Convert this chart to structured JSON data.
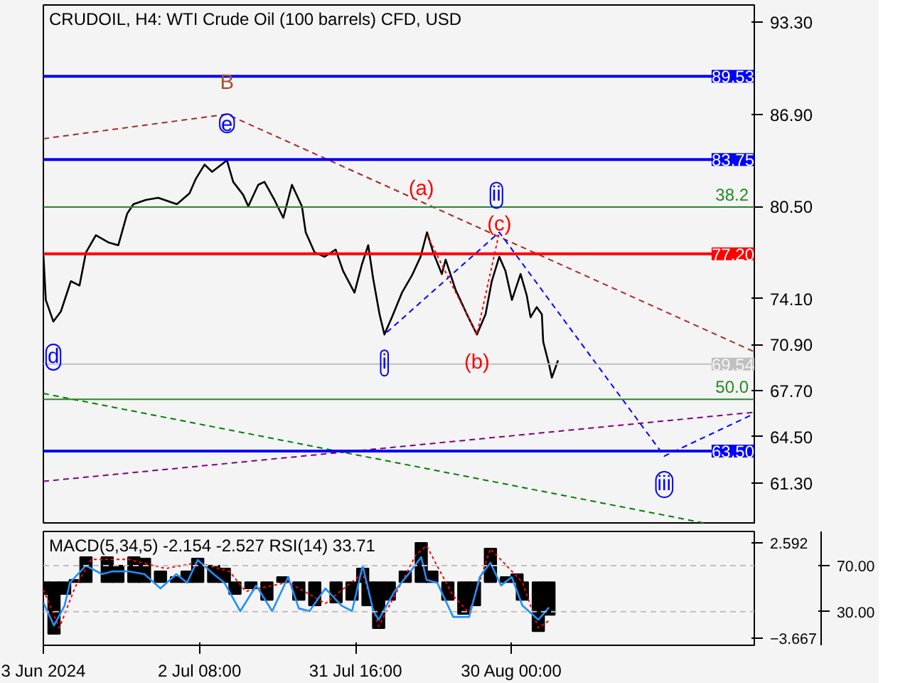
{
  "chart_data": [
    {
      "type": "line",
      "title": "CRUDOIL, H4:  WTI Crude Oil (100 barrels) CFD, USD",
      "xlim": [
        "2024-06-03",
        "2024-10-14T14:00"
      ],
      "ylim": [
        58.41,
        94.49
      ],
      "yticks": [
        {
          "value": 93.3,
          "label": "93.30"
        },
        {
          "value": 86.9,
          "label": "86.90"
        },
        {
          "value": 80.5,
          "label": "80.50"
        },
        {
          "value": 74.1,
          "label": "74.10"
        },
        {
          "value": 70.9,
          "label": "70.90"
        },
        {
          "value": 67.7,
          "label": "67.70"
        },
        {
          "value": 64.5,
          "label": "64.50"
        },
        {
          "value": 61.3,
          "label": "61.30"
        }
      ],
      "tick_labels": "y",
      "series": [
        {
          "color": "#000000",
          "line_style": "solid",
          "x": [
            "2024-06-03T00:00",
            "2024-06-03T11:00",
            "2024-06-04T21:00",
            "2024-06-06T07:00",
            "2024-06-08T04:00",
            "2024-06-09T19:00",
            "2024-06-11T00:00",
            "2024-06-12T21:00",
            "2024-06-15T05:00",
            "2024-06-17T02:00",
            "2024-06-18T18:00",
            "2024-06-19T22:00",
            "2024-06-22T06:00",
            "2024-06-24T14:00",
            "2024-06-28T02:00",
            "2024-06-30T11:00",
            "2024-07-01T15:00",
            "2024-07-03T07:00",
            "2024-07-04T17:00",
            "2024-07-07T12:00",
            "2024-07-08T16:00",
            "2024-07-10T13:00",
            "2024-07-11T12:00",
            "2024-07-13T09:00",
            "2024-07-14T13:00",
            "2024-07-16T10:00",
            "2024-07-18T02:00",
            "2024-07-19T17:00",
            "2024-07-21T14:00",
            "2024-07-22T07:00",
            "2024-07-23T23:00",
            "2024-07-25T20:00",
            "2024-07-27T22:00",
            "2024-07-29T08:00",
            "2024-07-31T11:00",
            "2024-08-01T21:00",
            "2024-08-03T01:00",
            "2024-08-03T23:00",
            "2024-08-05T04:00",
            "2024-08-06T02:00",
            "2024-08-07T12:00",
            "2024-08-09T09:00",
            "2024-08-11T06:00",
            "2024-08-12T21:00",
            "2024-08-14T02:00",
            "2024-08-15T06:00",
            "2024-08-16T21:00",
            "2024-08-17T14:00",
            "2024-08-19T11:00",
            "2024-08-21T14:00",
            "2024-08-23T11:00",
            "2024-08-25T02:00",
            "2024-08-26T06:00",
            "2024-08-27T16:00",
            "2024-08-28T20:00",
            "2024-08-30T01:00",
            "2024-08-31T16:00",
            "2024-09-01T20:00",
            "2024-09-02T13:00",
            "2024-09-03T17:00",
            "2024-09-04T16:00",
            "2024-09-04T22:00",
            "2024-09-06T02:00",
            "2024-09-06T13:00",
            "2024-09-07T17:00"
          ],
          "values": [
            77.2,
            74.0,
            72.5,
            73.2,
            75.3,
            75.0,
            77.3,
            78.5,
            78.0,
            77.8,
            80.0,
            80.65,
            80.95,
            81.1,
            80.65,
            81.4,
            82.4,
            83.4,
            82.9,
            83.7,
            82.2,
            81.3,
            80.5,
            82.0,
            82.2,
            80.95,
            79.7,
            82.0,
            80.5,
            78.7,
            77.3,
            77.0,
            77.5,
            76.0,
            74.5,
            76.5,
            77.8,
            75.5,
            73.0,
            71.6,
            72.8,
            74.5,
            75.7,
            77.0,
            78.7,
            77.3,
            75.8,
            76.8,
            74.7,
            73.0,
            71.6,
            73.0,
            75.3,
            77.0,
            76.0,
            74.0,
            75.8,
            74.3,
            72.8,
            73.5,
            73.0,
            71.1,
            69.4,
            68.6,
            69.8
          ]
        },
        {
          "color": "#a52a2a",
          "line_style": "dashed",
          "x": [
            "2024-06-03",
            "2024-07-07T12:00",
            "2024-10-14T14:00"
          ],
          "values": [
            85.2,
            86.9,
            70.4
          ]
        },
        {
          "color": "#0000ff",
          "line_style": "dashed",
          "x": [
            "2024-08-06T13:00",
            "2024-08-27T16:00",
            "2024-09-27T16:00",
            "2024-10-14T14:00"
          ],
          "values": [
            71.75,
            78.7,
            63.15,
            66.1
          ]
        },
        {
          "color": "#ff0000",
          "line_style": "dotted",
          "x": [
            "2024-08-14T02:00",
            "2024-08-23T11:00",
            "2024-08-27T16:00"
          ],
          "values": [
            78.5,
            71.6,
            78.7
          ]
        },
        {
          "color": "#800080",
          "line_style": "dashed",
          "x": [
            "2024-06-03",
            "2024-10-14T14:00"
          ],
          "values": [
            61.4,
            66.2
          ]
        },
        {
          "color": "#008000",
          "line_style": "dashed",
          "x": [
            "2024-06-03",
            "2024-10-05T05:00"
          ],
          "values": [
            67.5,
            58.5
          ]
        }
      ],
      "ref_lines": [
        {
          "axis": "y",
          "value": 89.53,
          "label": "89.53",
          "color": "#0000ff"
        },
        {
          "axis": "y",
          "value": 83.75,
          "label": "83.75",
          "color": "#0000ff"
        },
        {
          "axis": "y",
          "value": 80.45,
          "color": "#228b22"
        },
        {
          "axis": "y",
          "value": 77.2,
          "label": "77.20",
          "color": "#ff0000"
        },
        {
          "axis": "y",
          "value": 69.54,
          "label": "69.54",
          "color": "#c0c0c0"
        },
        {
          "axis": "y",
          "value": 67.1,
          "color": "#228b22"
        },
        {
          "axis": "y",
          "value": 63.5,
          "label": "63.50",
          "color": "#0000ff"
        }
      ],
      "annotations": [
        {
          "text": "B",
          "x": "2024-07-07T12:00",
          "y": 86.9
        },
        {
          "text": "e",
          "x": "2024-07-07T12:00",
          "y": 83.7
        },
        {
          "text": "d",
          "x": "2024-06-04T21:00",
          "y": 72.5
        },
        {
          "text": "i",
          "x": "2024-08-06T02:00",
          "y": 71.6
        },
        {
          "text": "(a)",
          "x": "2024-08-14T02:00",
          "y": 78.7
        },
        {
          "text": "ii",
          "x": "2024-08-27T16:00",
          "y": 78.7
        },
        {
          "text": "(b)",
          "x": "2024-08-23T11:00",
          "y": 71.6
        },
        {
          "text": "(c)",
          "x": "2024-08-27T16:00",
          "y": 78.7
        },
        {
          "text": "iii",
          "x": "2024-09-27T16:00",
          "y": 63.15
        },
        {
          "text": "38.2",
          "x": "2024-10-14T14:00",
          "y": 80.45
        },
        {
          "text": "50.0",
          "x": "2024-10-14T14:00",
          "y": 67.1
        }
      ]
    },
    {
      "type": "bar",
      "title": "MACD(5,34,5) -2.154 -2.527 RSI(14) 33.71",
      "xlim": [
        "2024-06-03",
        "2024-10-14T14:00"
      ],
      "xticks": [
        {
          "value": "2024-06-03",
          "label": "3 Jun 2024"
        },
        {
          "value": "2024-07-02T08:00",
          "label": "2 Jul 08:00"
        },
        {
          "value": "2024-07-31T16:00",
          "label": "31 Jul 16:00"
        },
        {
          "value": "2024-08-30T00:00",
          "label": "30 Aug 00:00"
        }
      ],
      "ylim": [
        -4.15,
        3.34
      ],
      "yticks": [
        2.592,
        -3.667
      ],
      "y2lim": [
        0.9,
        99.6
      ],
      "y2ticks": [
        {
          "value": 70,
          "label": "70.00"
        },
        {
          "value": 30,
          "label": "30.00"
        }
      ],
      "series": [
        {
          "type": "bar",
          "color": "#000000",
          "x": [
            "2024-06-03",
            "2024-06-05",
            "2024-06-07",
            "2024-06-09",
            "2024-06-11",
            "2024-06-15",
            "2024-06-17",
            "2024-06-20",
            "2024-06-22",
            "2024-06-25",
            "2024-06-28",
            "2024-06-30",
            "2024-07-02",
            "2024-07-05",
            "2024-07-07",
            "2024-07-09",
            "2024-07-12",
            "2024-07-15",
            "2024-07-18",
            "2024-07-21",
            "2024-07-24",
            "2024-07-28",
            "2024-07-31",
            "2024-08-02",
            "2024-08-03",
            "2024-08-05",
            "2024-08-07",
            "2024-08-10",
            "2024-08-13",
            "2024-08-15",
            "2024-08-18",
            "2024-08-21",
            "2024-08-23",
            "2024-08-26",
            "2024-08-29",
            "2024-08-31",
            "2024-09-01",
            "2024-09-04",
            "2024-09-06"
          ],
          "values": [
            -0.78,
            -3.4,
            -0.78,
            0.16,
            1.66,
            1.66,
            1.09,
            1.66,
            1.56,
            0.72,
            0.34,
            0.72,
            1.56,
            1.09,
            0.9,
            -0.78,
            -0.41,
            -1.16,
            0.34,
            -1.16,
            -1.53,
            -1.34,
            -1.16,
            0.9,
            -1.53,
            -3.03,
            -1.16,
            0.72,
            2.59,
            0.72,
            -1.16,
            -2.09,
            -1.53,
            2.22,
            0.34,
            0.53,
            -1.16,
            -3.22,
            -2.15
          ]
        },
        {
          "type": "line",
          "color": "#ff0000",
          "line_style": "dotted",
          "x": [
            "2024-06-03",
            "2024-06-06",
            "2024-06-09",
            "2024-06-12",
            "2024-06-19",
            "2024-06-26",
            "2024-07-02",
            "2024-07-08",
            "2024-07-11",
            "2024-07-19",
            "2024-07-26",
            "2024-08-02",
            "2024-08-05",
            "2024-08-12",
            "2024-08-14",
            "2024-08-19",
            "2024-08-22",
            "2024-08-26",
            "2024-09-01",
            "2024-09-04",
            "2024-09-06"
          ],
          "values": [
            -0.5,
            -3.0,
            -0.3,
            1.5,
            1.5,
            0.9,
            1.3,
            0.7,
            -0.6,
            0.0,
            -1.4,
            0.6,
            -2.9,
            1.8,
            2.4,
            -0.9,
            -2.0,
            2.2,
            0.0,
            -3.0,
            -2.53
          ]
        },
        {
          "type": "line",
          "color": "#1e90ff",
          "axis": "y2",
          "x": [
            "2024-06-03",
            "2024-06-05",
            "2024-06-07",
            "2024-06-08",
            "2024-06-11",
            "2024-06-14",
            "2024-06-16",
            "2024-06-19",
            "2024-06-22",
            "2024-06-25",
            "2024-06-28",
            "2024-06-30",
            "2024-07-02",
            "2024-07-05",
            "2024-07-07",
            "2024-07-10",
            "2024-07-13",
            "2024-07-16",
            "2024-07-19",
            "2024-07-21",
            "2024-07-23",
            "2024-07-26",
            "2024-07-29",
            "2024-07-31",
            "2024-08-02",
            "2024-08-04",
            "2024-08-05",
            "2024-08-08",
            "2024-08-11",
            "2024-08-13",
            "2024-08-14",
            "2024-08-16",
            "2024-08-19",
            "2024-08-22",
            "2024-08-24",
            "2024-08-26",
            "2024-08-28",
            "2024-08-30",
            "2024-09-01",
            "2024-09-04",
            "2024-09-06"
          ],
          "values": [
            37.9,
            18.1,
            35.4,
            55.2,
            70,
            62.6,
            65,
            65,
            62.6,
            50.2,
            62.6,
            55.2,
            74.9,
            62.6,
            55.2,
            30.5,
            52.7,
            30.5,
            60.1,
            32.9,
            30.5,
            50.2,
            35.4,
            30.5,
            70,
            30.5,
            23.1,
            47.8,
            65,
            77.4,
            57.7,
            55.2,
            25.5,
            25.5,
            60.1,
            72.5,
            52.7,
            60.1,
            35.4,
            23.1,
            33.71
          ]
        }
      ],
      "ref_lines": [
        {
          "axis": "y2",
          "value": 70,
          "color": "#c0c0c0",
          "line_style": "dashed"
        },
        {
          "axis": "y2",
          "value": 30,
          "color": "#c0c0c0",
          "line_style": "dashed"
        }
      ]
    }
  ]
}
